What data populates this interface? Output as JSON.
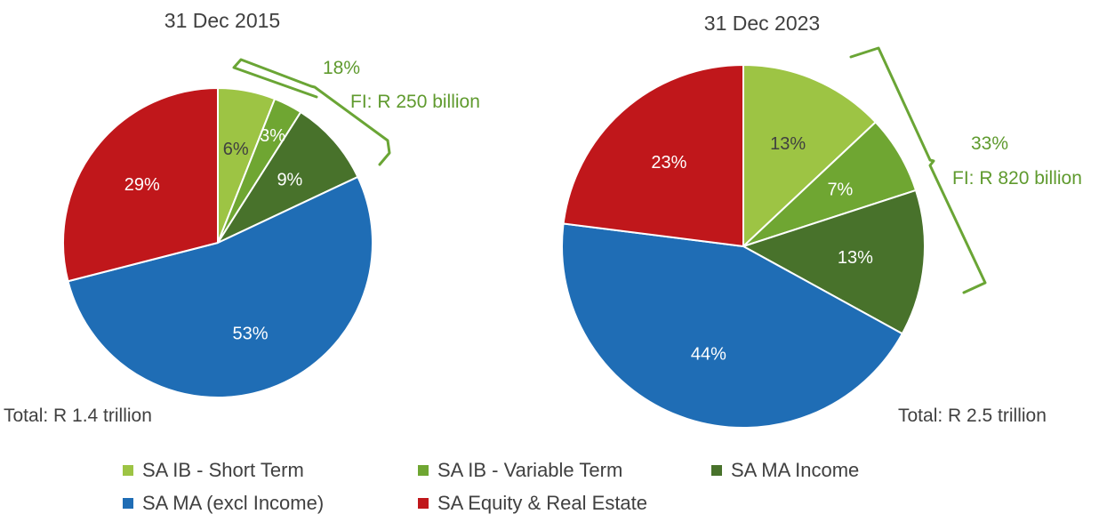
{
  "chart_data": [
    {
      "type": "pie",
      "title": "31 Dec 2015",
      "total_label": "Total: R 1.4 trillion",
      "categories": [
        "SA IB - Short Term",
        "SA IB - Variable Term",
        "SA MA Income",
        "SA MA (excl Income)",
        "SA Equity & Real Estate"
      ],
      "values": [
        6,
        3,
        9,
        53,
        29
      ],
      "labels": [
        "6%",
        "3%",
        "9%",
        "53%",
        "29%"
      ],
      "bracket_percent": "18%",
      "bracket_label": "FI: R 250 billion"
    },
    {
      "type": "pie",
      "title": "31 Dec 2023",
      "total_label": "Total: R 2.5 trillion",
      "categories": [
        "SA IB - Short Term",
        "SA IB - Variable Term",
        "SA MA Income",
        "SA MA (excl Income)",
        "SA Equity & Real Estate"
      ],
      "values": [
        13,
        7,
        13,
        44,
        23
      ],
      "labels": [
        "13%",
        "7%",
        "13%",
        "44%",
        "23%"
      ],
      "bracket_percent": "33%",
      "bracket_label": "FI: R 820 billion"
    }
  ],
  "legend": [
    {
      "label": "SA IB - Short Term",
      "color": "#9dc444"
    },
    {
      "label": "SA IB - Variable Term",
      "color": "#6fa632"
    },
    {
      "label": "SA MA Income",
      "color": "#48722b"
    },
    {
      "label": "SA MA (excl Income)",
      "color": "#1f6db5"
    },
    {
      "label": "SA Equity & Real Estate",
      "color": "#c0171b"
    }
  ],
  "colors": {
    "label_dark": "#404040",
    "bracket": "#5f9a2e",
    "label_on_slice": "#ffffff",
    "label_on_light_slice": "#404040"
  }
}
